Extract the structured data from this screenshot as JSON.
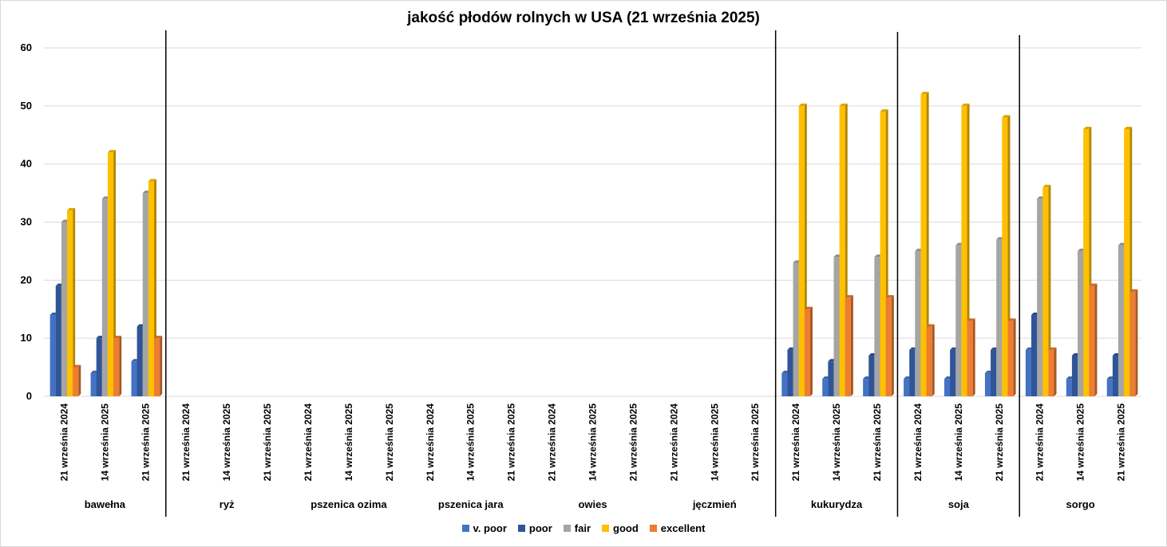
{
  "chart_data": {
    "type": "bar",
    "title": "jakość płodów rolnych w USA (21 września 2025)",
    "ylim": [
      0,
      60
    ],
    "yticks": [
      0,
      10,
      20,
      30,
      40,
      50,
      60
    ],
    "grid": true,
    "legend_position": "bottom",
    "sub_categories": [
      "21 września 2024",
      "14 września 2025",
      "21 września 2025"
    ],
    "groups": [
      "bawełna",
      "ryż",
      "pszenica ozima",
      "pszenica jara",
      "owies",
      "jęczmień",
      "kukurydza",
      "soja",
      "sorgo"
    ],
    "series": [
      {
        "name": "v. poor",
        "color": "#4472c4",
        "values": [
          [
            14,
            4,
            6
          ],
          [
            null,
            null,
            null
          ],
          [
            null,
            null,
            null
          ],
          [
            null,
            null,
            null
          ],
          [
            null,
            null,
            null
          ],
          [
            null,
            null,
            null
          ],
          [
            4,
            3,
            3
          ],
          [
            3,
            3,
            4
          ],
          [
            8,
            3,
            3
          ]
        ]
      },
      {
        "name": "poor",
        "color": "#2f5597",
        "values": [
          [
            19,
            10,
            12
          ],
          [
            null,
            null,
            null
          ],
          [
            null,
            null,
            null
          ],
          [
            null,
            null,
            null
          ],
          [
            null,
            null,
            null
          ],
          [
            null,
            null,
            null
          ],
          [
            8,
            6,
            7
          ],
          [
            8,
            8,
            8
          ],
          [
            14,
            7,
            7
          ]
        ]
      },
      {
        "name": "fair",
        "color": "#a5a5a5",
        "values": [
          [
            30,
            34,
            35
          ],
          [
            null,
            null,
            null
          ],
          [
            null,
            null,
            null
          ],
          [
            null,
            null,
            null
          ],
          [
            null,
            null,
            null
          ],
          [
            null,
            null,
            null
          ],
          [
            23,
            24,
            24
          ],
          [
            25,
            26,
            27
          ],
          [
            34,
            25,
            26
          ]
        ]
      },
      {
        "name": "good",
        "color": "#ffc000",
        "values": [
          [
            32,
            42,
            37
          ],
          [
            null,
            null,
            null
          ],
          [
            null,
            null,
            null
          ],
          [
            null,
            null,
            null
          ],
          [
            null,
            null,
            null
          ],
          [
            null,
            null,
            null
          ],
          [
            50,
            50,
            49
          ],
          [
            52,
            50,
            48
          ],
          [
            36,
            46,
            46
          ]
        ]
      },
      {
        "name": "excellent",
        "color": "#ed7d31",
        "values": [
          [
            5,
            10,
            10
          ],
          [
            null,
            null,
            null
          ],
          [
            null,
            null,
            null
          ],
          [
            null,
            null,
            null
          ],
          [
            null,
            null,
            null
          ],
          [
            null,
            null,
            null
          ],
          [
            15,
            17,
            17
          ],
          [
            12,
            13,
            13
          ],
          [
            8,
            19,
            18
          ]
        ]
      }
    ]
  }
}
